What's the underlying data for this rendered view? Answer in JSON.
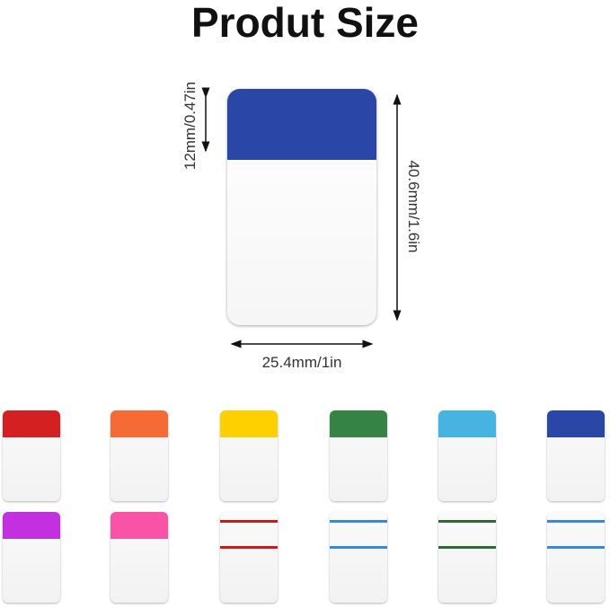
{
  "title": "Produt Size",
  "dimensions": {
    "header_height": "12mm/0.47in",
    "height": "40.6mm/1.6in",
    "width": "25.4mm/1in"
  },
  "main_tab_color": "#2a47a8",
  "variants": [
    {
      "style": "solid",
      "color": "#d42020"
    },
    {
      "style": "solid",
      "color": "#f56a35"
    },
    {
      "style": "solid",
      "color": "#ffd000"
    },
    {
      "style": "solid",
      "color": "#358446"
    },
    {
      "style": "solid",
      "color": "#46b3e0"
    },
    {
      "style": "solid",
      "color": "#2a47a8"
    },
    {
      "style": "solid",
      "color": "#c330e0"
    },
    {
      "style": "solid",
      "color": "#f953a8"
    },
    {
      "style": "lines",
      "color": "#cc1a1a"
    },
    {
      "style": "lines",
      "color": "#3a86e0"
    },
    {
      "style": "lines",
      "color": "#2e6a38"
    },
    {
      "style": "lines",
      "color": "#3a86e0"
    }
  ]
}
